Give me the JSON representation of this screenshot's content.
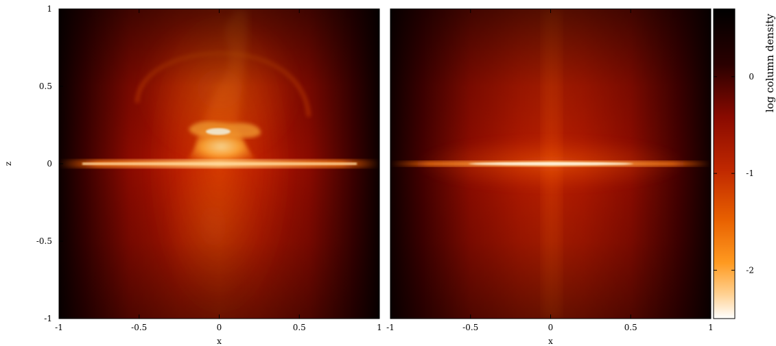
{
  "chart_data": [
    {
      "type": "heatmap",
      "panel": "left",
      "xlabel": "x",
      "ylabel": "z",
      "xlim": [
        -1,
        1
      ],
      "ylim": [
        -1,
        1
      ],
      "x_ticks": [
        {
          "value": -1,
          "label": "-1"
        },
        {
          "value": -0.5,
          "label": "-0.5"
        },
        {
          "value": 0,
          "label": "0"
        },
        {
          "value": 0.5,
          "label": "0.5"
        },
        {
          "value": 1,
          "label": "1"
        }
      ],
      "y_ticks": [
        {
          "value": -1,
          "label": "-1"
        },
        {
          "value": -0.5,
          "label": "-0.5"
        },
        {
          "value": 0,
          "label": "0"
        },
        {
          "value": 0.5,
          "label": "0.5"
        },
        {
          "value": 1,
          "label": "1"
        }
      ],
      "features": {
        "disk_midplane_z": 0,
        "central_bulge_extent_x": [
          -0.15,
          0.25
        ],
        "central_bulge_height_z": 0.25,
        "outer_shell_radius": 0.55
      }
    },
    {
      "type": "heatmap",
      "panel": "right",
      "xlabel": "x",
      "ylabel": "",
      "xlim": [
        -1,
        1
      ],
      "ylim": [
        -1,
        1
      ],
      "x_ticks": [
        {
          "value": -1,
          "label": "-1"
        },
        {
          "value": -0.5,
          "label": "-0.5"
        },
        {
          "value": 0,
          "label": "0"
        },
        {
          "value": 0.5,
          "label": "0.5"
        },
        {
          "value": 1,
          "label": "1"
        }
      ],
      "features": {
        "disk_midplane_z": 0,
        "vertical_jet_x": 0
      }
    }
  ],
  "colorbar": {
    "label": "log column density",
    "range": [
      -2.5,
      0.7
    ],
    "ticks": [
      {
        "value": 0,
        "label": "0"
      },
      {
        "value": -1,
        "label": "-1"
      },
      {
        "value": -2,
        "label": "-2"
      }
    ],
    "colors": [
      "#000000",
      "#500000",
      "#a01000",
      "#d84000",
      "#f88000",
      "#ffc060",
      "#ffffff"
    ]
  }
}
